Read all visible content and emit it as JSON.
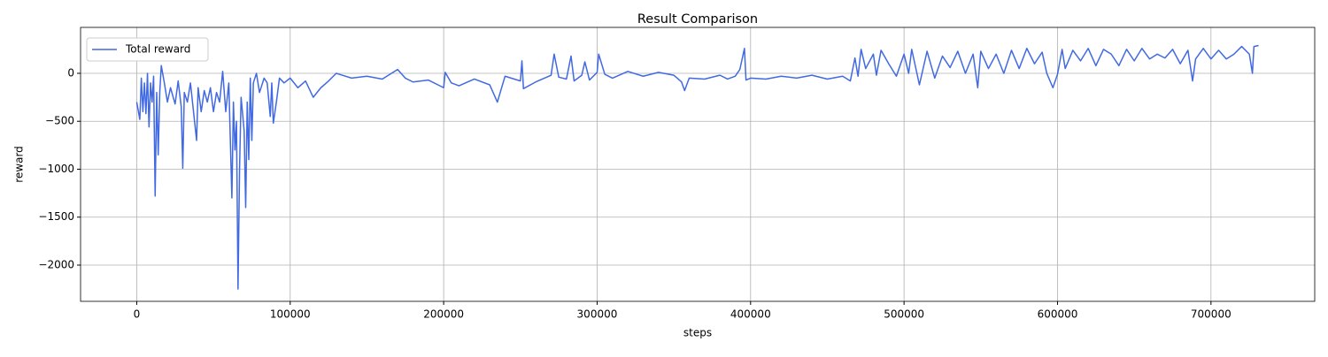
{
  "chart_data": {
    "type": "line",
    "title": "Result Comparison",
    "xlabel": "steps",
    "ylabel": "reward",
    "x": [
      0,
      2000,
      3000,
      4000,
      5000,
      6000,
      7000,
      8000,
      9000,
      10000,
      11000,
      12000,
      13000,
      14000,
      15000,
      16000,
      18000,
      20000,
      22000,
      25000,
      27000,
      29000,
      30000,
      31000,
      33000,
      35000,
      37000,
      39000,
      40000,
      42000,
      44000,
      46000,
      48000,
      50000,
      52000,
      54000,
      56000,
      58000,
      60000,
      61000,
      62000,
      63000,
      64000,
      65000,
      66000,
      67000,
      68000,
      70000,
      71000,
      72000,
      73000,
      74000,
      75000,
      76000,
      78000,
      80000,
      83000,
      85000,
      87000,
      88000,
      89000,
      91000,
      93000,
      96000,
      100000,
      105000,
      110000,
      115000,
      120000,
      125000,
      130000,
      140000,
      150000,
      160000,
      170000,
      175000,
      180000,
      190000,
      200000,
      201000,
      205000,
      210000,
      220000,
      230000,
      235000,
      240000,
      250000,
      251000,
      252000,
      260000,
      270000,
      272000,
      275000,
      280000,
      283000,
      285000,
      290000,
      292000,
      295000,
      300000,
      301000,
      305000,
      310000,
      320000,
      330000,
      340000,
      350000,
      355000,
      357000,
      360000,
      370000,
      380000,
      385000,
      390000,
      393000,
      396000,
      397000,
      400000,
      410000,
      420000,
      430000,
      440000,
      450000,
      460000,
      465000,
      468000,
      470000,
      472000,
      475000,
      480000,
      482000,
      485000,
      490000,
      495000,
      500000,
      503000,
      505000,
      510000,
      515000,
      520000,
      525000,
      530000,
      535000,
      540000,
      545000,
      548000,
      550000,
      555000,
      560000,
      565000,
      570000,
      575000,
      580000,
      585000,
      590000,
      593000,
      597000,
      600000,
      603000,
      605000,
      610000,
      615000,
      620000,
      625000,
      630000,
      635000,
      640000,
      645000,
      650000,
      655000,
      660000,
      665000,
      670000,
      675000,
      680000,
      685000,
      688000,
      690000,
      695000,
      700000,
      705000,
      710000,
      715000,
      720000,
      725000,
      727000,
      728000,
      731000
    ],
    "series": [
      {
        "name": "Total reward",
        "color": "#4169e1",
        "values": [
          -300,
          -480,
          -50,
          -400,
          -100,
          -420,
          0,
          -560,
          -100,
          -300,
          -30,
          -1280,
          -200,
          -850,
          -200,
          80,
          -100,
          -300,
          -150,
          -320,
          -80,
          -350,
          -990,
          -200,
          -300,
          -100,
          -400,
          -700,
          -150,
          -400,
          -180,
          -300,
          -150,
          -400,
          -200,
          -300,
          20,
          -400,
          -100,
          -700,
          -1300,
          -300,
          -800,
          -500,
          -2250,
          -1000,
          -250,
          -600,
          -1400,
          -300,
          -900,
          -50,
          -700,
          -100,
          0,
          -200,
          -50,
          -100,
          -450,
          -100,
          -520,
          -300,
          -50,
          -100,
          -50,
          -150,
          -80,
          -250,
          -150,
          -80,
          0,
          -50,
          -30,
          -60,
          40,
          -50,
          -90,
          -70,
          -150,
          10,
          -100,
          -130,
          -60,
          -120,
          -300,
          -30,
          -80,
          130,
          -160,
          -90,
          -20,
          200,
          -40,
          -60,
          180,
          -80,
          -20,
          120,
          -70,
          10,
          200,
          -10,
          -50,
          20,
          -30,
          10,
          -20,
          -90,
          -180,
          -50,
          -60,
          -20,
          -60,
          -30,
          40,
          260,
          -70,
          -50,
          -60,
          -30,
          -50,
          -20,
          -60,
          -30,
          -80,
          160,
          -30,
          250,
          50,
          200,
          -20,
          240,
          100,
          -30,
          200,
          0,
          250,
          -120,
          230,
          -50,
          180,
          60,
          230,
          0,
          200,
          -150,
          230,
          50,
          200,
          0,
          240,
          50,
          260,
          100,
          220,
          0,
          -150,
          -10,
          250,
          50,
          240,
          130,
          260,
          80,
          250,
          200,
          80,
          250,
          130,
          260,
          150,
          200,
          160,
          250,
          100,
          240,
          -80,
          150,
          260,
          150,
          240,
          150,
          200,
          280,
          200,
          0,
          280,
          290
        ]
      }
    ],
    "xlim": [
      -36600,
      767600
    ],
    "ylim": [
      -2378,
      479
    ],
    "xticks": [
      0,
      100000,
      200000,
      300000,
      400000,
      500000,
      600000,
      700000
    ],
    "yticks": [
      {
        "value": -2000,
        "label": "−2000"
      },
      {
        "value": -1500,
        "label": "−1500"
      },
      {
        "value": -1000,
        "label": "−1000"
      },
      {
        "value": -500,
        "label": "−500"
      },
      0
    ],
    "grid": true,
    "legend": "upper left"
  }
}
